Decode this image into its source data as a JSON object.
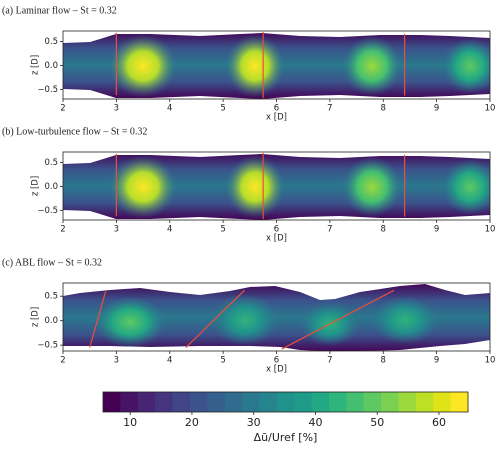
{
  "chart_data": [
    {
      "type": "contour",
      "title": "(a) Laminar flow – St = 0.32",
      "xlabel": "x [D]",
      "ylabel": "z [D]",
      "xlim": [
        2,
        10
      ],
      "ylim": [
        -0.7,
        0.72
      ],
      "xticks": [
        2,
        3,
        4,
        5,
        6,
        7,
        8,
        9,
        10
      ],
      "yticks": [
        {
          "value": -0.5,
          "label": "−0.5"
        },
        {
          "value": 0,
          "label": "0.0"
        },
        {
          "value": 0.5,
          "label": "0.5"
        }
      ],
      "lines": [
        {
          "x": [
            3,
            3
          ],
          "y": [
            -0.62,
            0.68
          ],
          "color": "#e8503a"
        },
        {
          "x": [
            5.75,
            5.75
          ],
          "y": [
            -0.68,
            0.7
          ],
          "color": "#e8503a"
        },
        {
          "x": [
            8.4,
            8.4
          ],
          "y": [
            -0.63,
            0.66
          ],
          "color": "#e8503a"
        }
      ]
    },
    {
      "type": "contour",
      "title": "(b) Low-turbulence flow – St = 0.32",
      "xlabel": "x [D]",
      "ylabel": "z [D]",
      "xlim": [
        2,
        10
      ],
      "ylim": [
        -0.7,
        0.72
      ],
      "xticks": [
        2,
        3,
        4,
        5,
        6,
        7,
        8,
        9,
        10
      ],
      "yticks": [
        {
          "value": -0.5,
          "label": "−0.5"
        },
        {
          "value": 0,
          "label": "0.0"
        },
        {
          "value": 0.5,
          "label": "0.5"
        }
      ],
      "lines": [
        {
          "x": [
            3,
            3
          ],
          "y": [
            -0.62,
            0.68
          ],
          "color": "#e8503a"
        },
        {
          "x": [
            5.75,
            5.75
          ],
          "y": [
            -0.68,
            0.7
          ],
          "color": "#e8503a"
        },
        {
          "x": [
            8.4,
            8.4
          ],
          "y": [
            -0.63,
            0.66
          ],
          "color": "#e8503a"
        }
      ]
    },
    {
      "type": "contour",
      "title": "(c) ABL flow – St = 0.32",
      "xlabel": "x [D]",
      "ylabel": "z [D]",
      "xlim": [
        2,
        10
      ],
      "ylim": [
        -0.62,
        0.77
      ],
      "xticks": [
        2,
        3,
        4,
        5,
        6,
        7,
        8,
        9,
        10
      ],
      "yticks": [
        {
          "value": -0.5,
          "label": "−0.5"
        },
        {
          "value": 0,
          "label": "0.0"
        },
        {
          "value": 0.5,
          "label": "0.5"
        }
      ],
      "lines": [
        {
          "x": [
            2.5,
            2.8
          ],
          "y": [
            -0.55,
            0.6
          ],
          "color": "#e8503a"
        },
        {
          "x": [
            4.3,
            5.4
          ],
          "y": [
            -0.55,
            0.62
          ],
          "color": "#e8503a"
        },
        {
          "x": [
            6.1,
            8.2
          ],
          "y": [
            -0.58,
            0.62
          ],
          "color": "#e8503a"
        }
      ]
    },
    {
      "type": "colorbar",
      "label": "Δũ/Uref [%]",
      "clim": [
        5.6,
        64.7
      ],
      "ticks": [
        10,
        20,
        30,
        40,
        50,
        60
      ],
      "colors": [
        "#440154",
        "#471365",
        "#482475",
        "#463480",
        "#414487",
        "#3b528b",
        "#355f8d",
        "#2f6c8e",
        "#2a788e",
        "#25848e",
        "#21918c",
        "#1e9c89",
        "#22a884",
        "#2fb47c",
        "#44bf70",
        "#5ec962",
        "#7ad151",
        "#9bd93c",
        "#bddf26",
        "#dfe318",
        "#fde725"
      ]
    }
  ]
}
